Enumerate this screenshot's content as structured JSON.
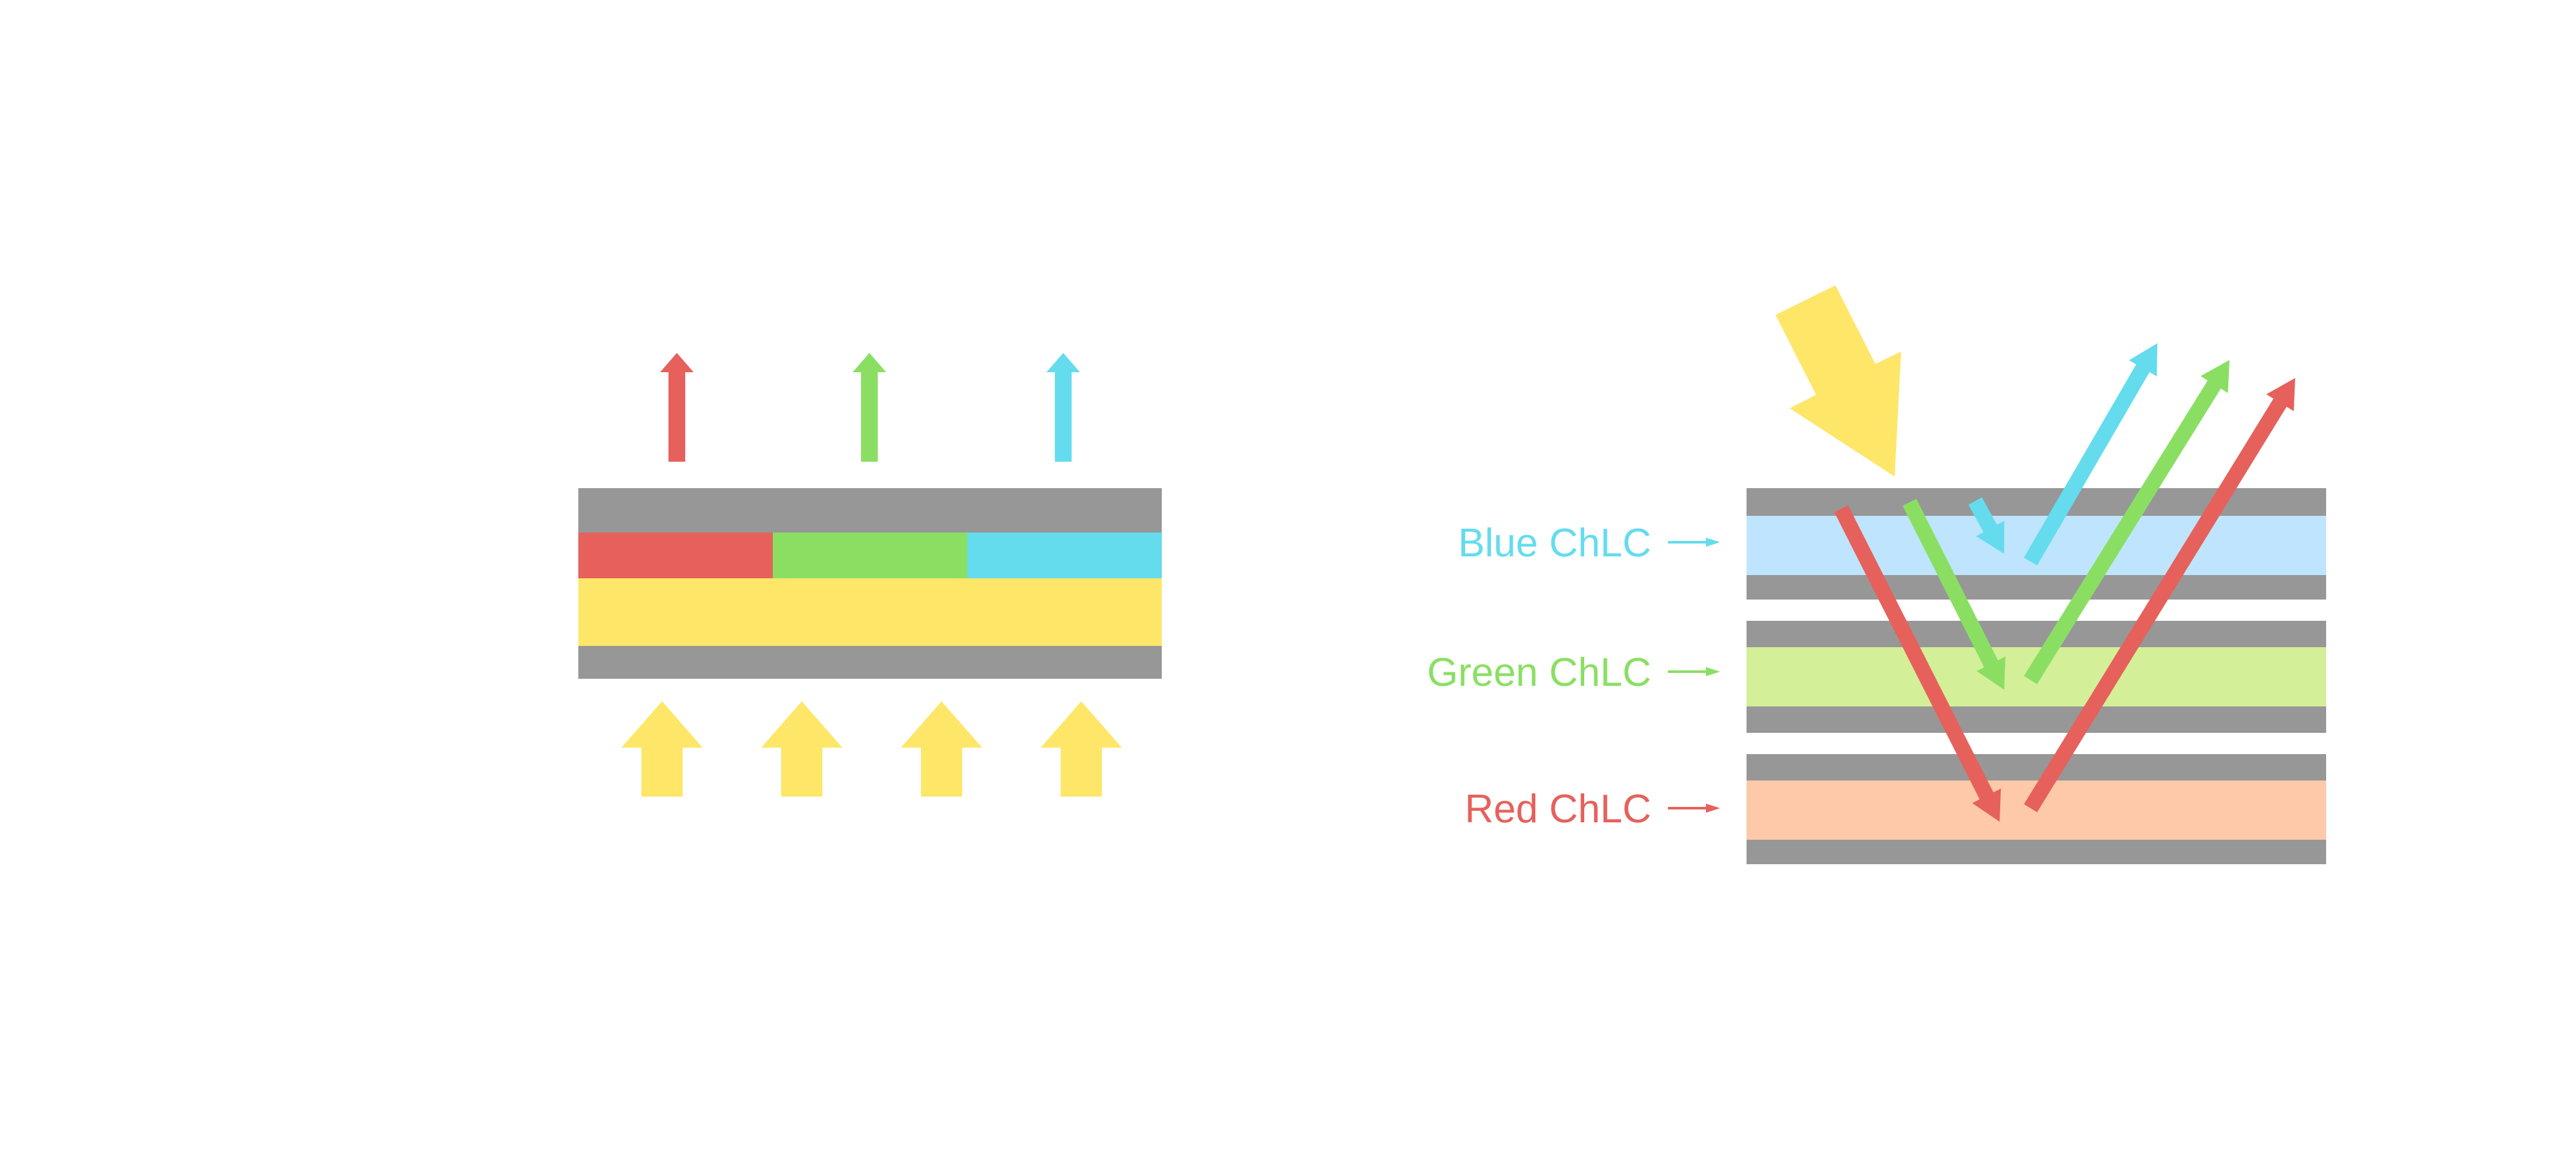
{
  "colors": {
    "substrate_gray": "#979797",
    "red": "#e6615c",
    "green": "#8adf63",
    "cyan": "#64dcee",
    "yellow": "#fee668",
    "blue_layer": "#bee5fd",
    "green_layer": "#d3ef98",
    "red_layer": "#fdc9a9"
  },
  "left_diagram": {
    "filter_segments": [
      "red",
      "green",
      "cyan"
    ],
    "output_arrows": [
      "red",
      "green",
      "cyan"
    ],
    "backlight_arrow_count": 4
  },
  "right_diagram": {
    "labels": {
      "blue": "Blue ChLC",
      "green": "Green ChLC",
      "red": "Red ChLC"
    },
    "incident_light_icon": "yellow-arrow-icon"
  }
}
